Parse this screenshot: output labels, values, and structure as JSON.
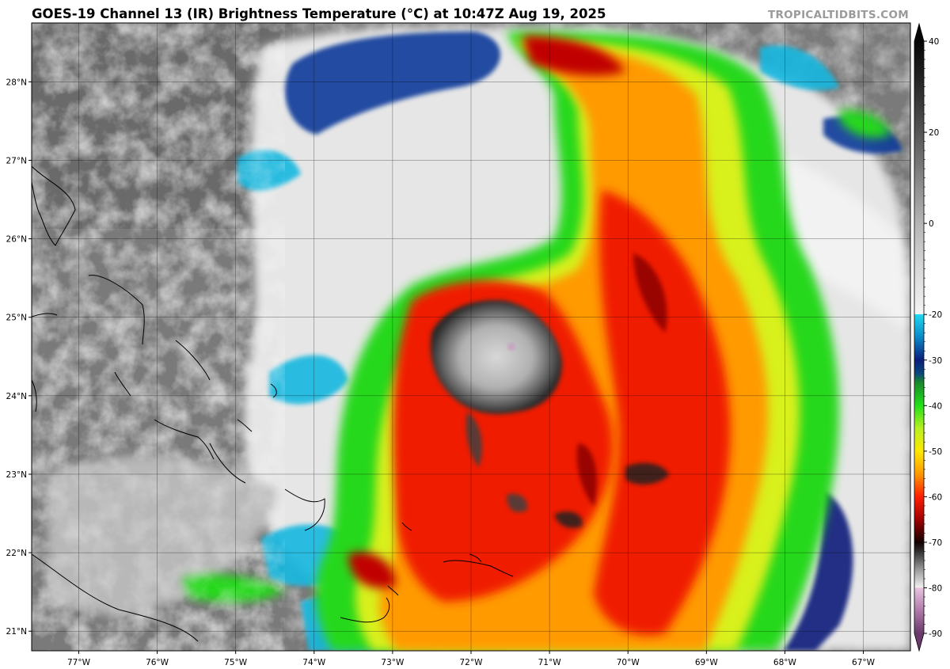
{
  "header": {
    "title": "GOES-19 Channel 13 (IR) Brightness Temperature (°C) at 10:47Z Aug 19, 2025",
    "credit": "TROPICALTIDBITS.COM"
  },
  "map": {
    "lon_range": [
      -77.6,
      -66.4
    ],
    "lat_range": [
      20.75,
      28.75
    ],
    "lon_ticks": [
      {
        "value": -77,
        "label": "77°W"
      },
      {
        "value": -76,
        "label": "76°W"
      },
      {
        "value": -75,
        "label": "75°W"
      },
      {
        "value": -74,
        "label": "74°W"
      },
      {
        "value": -73,
        "label": "73°W"
      },
      {
        "value": -72,
        "label": "72°W"
      },
      {
        "value": -71,
        "label": "71°W"
      },
      {
        "value": -70,
        "label": "70°W"
      },
      {
        "value": -69,
        "label": "69°W"
      },
      {
        "value": -68,
        "label": "68°W"
      },
      {
        "value": -67,
        "label": "67°W"
      }
    ],
    "lat_ticks": [
      {
        "value": 21,
        "label": "21°N"
      },
      {
        "value": 22,
        "label": "22°N"
      },
      {
        "value": 23,
        "label": "23°N"
      },
      {
        "value": 24,
        "label": "24°N"
      },
      {
        "value": 25,
        "label": "25°N"
      },
      {
        "value": 26,
        "label": "26°N"
      },
      {
        "value": 27,
        "label": "27°N"
      },
      {
        "value": 28,
        "label": "28°N"
      }
    ],
    "storm_center": {
      "lon": -71.8,
      "lat": 24.6
    },
    "gridlines": true
  },
  "colorbar": {
    "range": [
      -90,
      40
    ],
    "ticks": [
      {
        "value": 40,
        "label": "40"
      },
      {
        "value": 20,
        "label": "20"
      },
      {
        "value": 0,
        "label": "0"
      },
      {
        "value": -20,
        "label": "-20"
      },
      {
        "value": -30,
        "label": "-30"
      },
      {
        "value": -40,
        "label": "-40"
      },
      {
        "value": -50,
        "label": "-50"
      },
      {
        "value": -60,
        "label": "-60"
      },
      {
        "value": -70,
        "label": "-70"
      },
      {
        "value": -80,
        "label": "-80"
      },
      {
        "value": -90,
        "label": "-90"
      }
    ],
    "stops": [
      {
        "value": 40,
        "color": "#050505"
      },
      {
        "value": 30,
        "color": "#2a2a2a"
      },
      {
        "value": 20,
        "color": "#555555"
      },
      {
        "value": 10,
        "color": "#858585"
      },
      {
        "value": 0,
        "color": "#b5b5b5"
      },
      {
        "value": -10,
        "color": "#d8d8d8"
      },
      {
        "value": -19.9,
        "color": "#f4f4f4"
      },
      {
        "value": -20,
        "color": "#20d8f0"
      },
      {
        "value": -25,
        "color": "#0a88c8"
      },
      {
        "value": -30,
        "color": "#0a1e7a"
      },
      {
        "value": -33,
        "color": "#0a4a7a"
      },
      {
        "value": -35,
        "color": "#1a8a2a"
      },
      {
        "value": -40,
        "color": "#22e01a"
      },
      {
        "value": -45,
        "color": "#b8f020"
      },
      {
        "value": -50,
        "color": "#ffe800"
      },
      {
        "value": -55,
        "color": "#ff9a00"
      },
      {
        "value": -60,
        "color": "#ff1e00"
      },
      {
        "value": -65,
        "color": "#a00000"
      },
      {
        "value": -70,
        "color": "#150000"
      },
      {
        "value": -72,
        "color": "#303030"
      },
      {
        "value": -76,
        "color": "#9a9a9a"
      },
      {
        "value": -79.9,
        "color": "#f0f0f0"
      },
      {
        "value": -80,
        "color": "#e8c4e0"
      },
      {
        "value": -85,
        "color": "#b07aa8"
      },
      {
        "value": -90,
        "color": "#6a3a6a"
      }
    ]
  }
}
